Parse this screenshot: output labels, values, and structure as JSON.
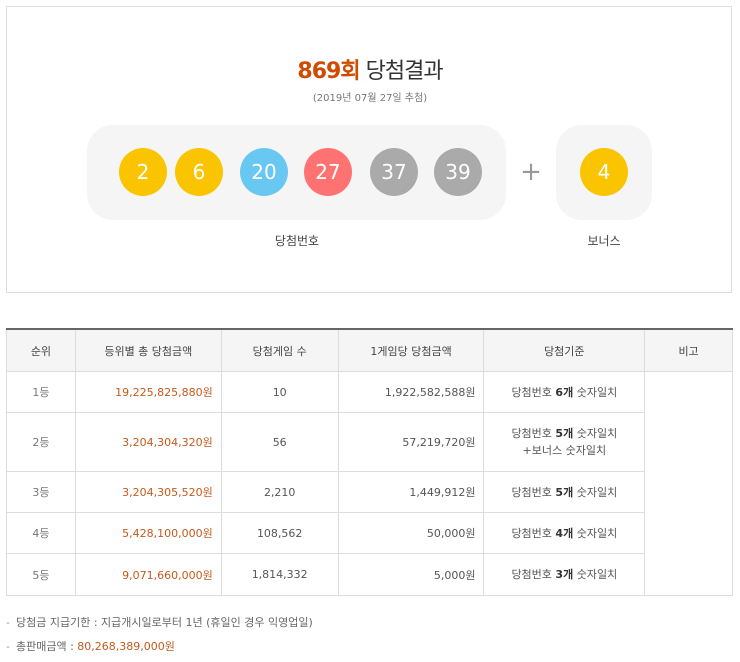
{
  "header": {
    "draw_no": "869회",
    "title": "당첨결과",
    "date": "(2019년 07월 27일 추첨)"
  },
  "numbers": {
    "balls": [
      {
        "value": 2,
        "color": "#fbc400"
      },
      {
        "value": 6,
        "color": "#fbc400"
      },
      {
        "value": 20,
        "color": "#69c8f2"
      },
      {
        "value": 27,
        "color": "#ff7272"
      },
      {
        "value": 37,
        "color": "#aaaaaa"
      },
      {
        "value": 39,
        "color": "#aaaaaa"
      }
    ],
    "plus": "+",
    "bonus": {
      "value": 4,
      "color": "#fbc400"
    },
    "label": "당첨번호",
    "bonus_label": "보너스"
  },
  "table": {
    "headers": [
      "순위",
      "등위별 총 당첨금액",
      "당첨게임 수",
      "1게임당 당첨금액",
      "당첨기준",
      "비고"
    ],
    "rows": [
      {
        "rank": "1등",
        "total": "19,225,825,880원",
        "count": "10",
        "per_game": "1,922,582,588원",
        "criteria": {
          "pre": "당첨번호",
          "num": "6개",
          "post": "숫자일치"
        }
      },
      {
        "rank": "2등",
        "total": "3,204,304,320원",
        "count": "56",
        "per_game": "57,219,720원",
        "criteria": {
          "pre": "당첨번호",
          "num": "5개",
          "post": "숫자일치",
          "extra": "+보너스 숫자일치"
        }
      },
      {
        "rank": "3등",
        "total": "3,204,305,520원",
        "count": "2,210",
        "per_game": "1,449,912원",
        "criteria": {
          "pre": "당첨번호",
          "num": "5개",
          "post": "숫자일치"
        }
      },
      {
        "rank": "4등",
        "total": "5,428,100,000원",
        "count": "108,562",
        "per_game": "50,000원",
        "criteria": {
          "pre": "당첨번호",
          "num": "4개",
          "post": "숫자일치"
        }
      },
      {
        "rank": "5등",
        "total": "9,071,660,000원",
        "count": "1,814,332",
        "per_game": "5,000원",
        "criteria": {
          "pre": "당첨번호",
          "num": "3개",
          "post": "숫자일치"
        }
      }
    ]
  },
  "notes": [
    {
      "text": "당첨금 지급기한 : 지급개시일로부터 1년 (휴일인 경우 익영업일)"
    },
    {
      "text": "총판매금액 : ",
      "amount": "80,268,389,000원"
    }
  ]
}
